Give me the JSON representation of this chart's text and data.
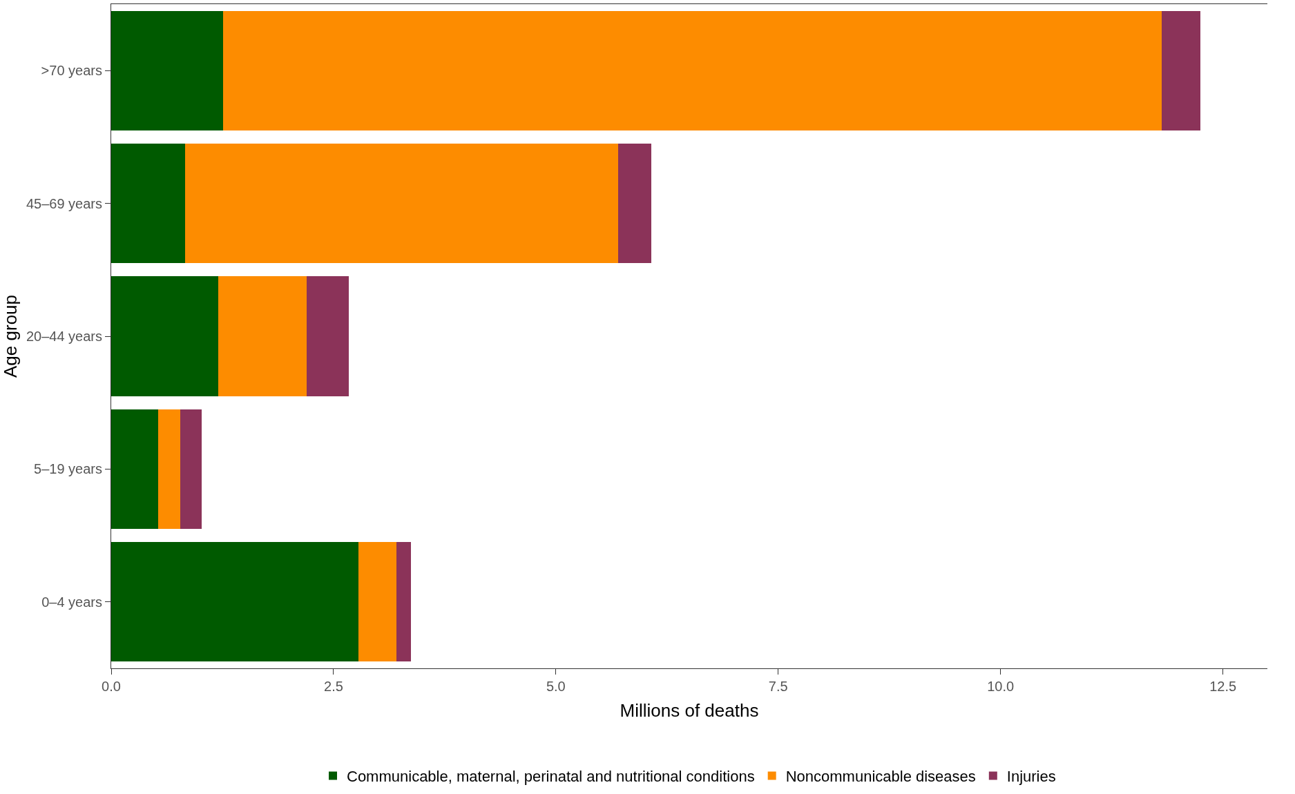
{
  "chart_data": {
    "type": "bar",
    "orientation": "horizontal",
    "stacked": true,
    "xlabel": "Millions of deaths",
    "ylabel": "Age group",
    "categories": [
      ">70 years",
      "45–69 years",
      "20–44 years",
      "5–19 years",
      "0–4 years"
    ],
    "series": [
      {
        "name": "Communicable, maternal, perinatal and nutritional conditions",
        "color": "#005a00",
        "values": [
          1.26,
          0.83,
          1.2,
          0.53,
          2.78
        ]
      },
      {
        "name": "Noncommunicable diseases",
        "color": "#fd8c00",
        "values": [
          10.55,
          4.87,
          1.0,
          0.25,
          0.43
        ]
      },
      {
        "name": "Injuries",
        "color": "#8b3359",
        "values": [
          0.44,
          0.37,
          0.47,
          0.24,
          0.16
        ]
      }
    ],
    "xlim": [
      0,
      13
    ],
    "xticks": [
      {
        "value": 0,
        "label": "0.0"
      },
      {
        "value": 2.5,
        "label": "2.5"
      },
      {
        "value": 5,
        "label": "5.0"
      },
      {
        "value": 7.5,
        "label": "7.5"
      },
      {
        "value": 10,
        "label": "10.0"
      },
      {
        "value": 12.5,
        "label": "12.5"
      }
    ],
    "legend": "bottom"
  }
}
